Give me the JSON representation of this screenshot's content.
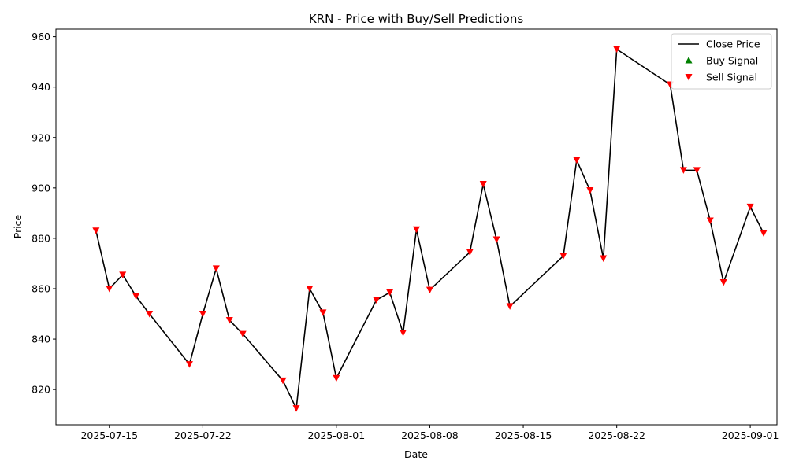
{
  "chart_data": {
    "type": "line",
    "title": "KRN - Price with Buy/Sell Predictions",
    "xlabel": "Date",
    "ylabel": "Price",
    "ylim": [
      806,
      963
    ],
    "xlim": [
      "2025-07-11",
      "2025-09-03"
    ],
    "grid": false,
    "legend_position": "top-right",
    "x_ticks": [
      "2025-07-15",
      "2025-07-22",
      "2025-08-01",
      "2025-08-08",
      "2025-08-15",
      "2025-08-22",
      "2025-09-01"
    ],
    "y_ticks": [
      820,
      840,
      860,
      880,
      900,
      920,
      940,
      960
    ],
    "series": [
      {
        "name": "Close Price",
        "kind": "line",
        "color": "#000000",
        "x": [
          "2025-07-14",
          "2025-07-15",
          "2025-07-16",
          "2025-07-17",
          "2025-07-18",
          "2025-07-21",
          "2025-07-22",
          "2025-07-23",
          "2025-07-24",
          "2025-07-25",
          "2025-07-28",
          "2025-07-29",
          "2025-07-30",
          "2025-07-31",
          "2025-08-01",
          "2025-08-04",
          "2025-08-05",
          "2025-08-06",
          "2025-08-07",
          "2025-08-08",
          "2025-08-11",
          "2025-08-12",
          "2025-08-13",
          "2025-08-14",
          "2025-08-18",
          "2025-08-19",
          "2025-08-20",
          "2025-08-21",
          "2025-08-22",
          "2025-08-26",
          "2025-08-27",
          "2025-08-28",
          "2025-08-29",
          "2025-08-30",
          "2025-09-01",
          "2025-09-02"
        ],
        "y": [
          883,
          860,
          865.5,
          857,
          850,
          830,
          850,
          868,
          847.5,
          842,
          823.5,
          812.5,
          860,
          850.5,
          824.5,
          855.5,
          858.5,
          842.5,
          883.5,
          859.5,
          874.5,
          901.5,
          879.5,
          853,
          873,
          911,
          899,
          872,
          955,
          941,
          907,
          907,
          887,
          862.5,
          892.5,
          882
        ]
      },
      {
        "name": "Buy Signal",
        "kind": "scatter",
        "marker": "triangle-up",
        "color": "#008000",
        "x": [],
        "y": []
      },
      {
        "name": "Sell Signal",
        "kind": "scatter",
        "marker": "triangle-down",
        "color": "#ff0000",
        "x": [
          "2025-07-14",
          "2025-07-15",
          "2025-07-16",
          "2025-07-17",
          "2025-07-18",
          "2025-07-21",
          "2025-07-22",
          "2025-07-23",
          "2025-07-24",
          "2025-07-25",
          "2025-07-28",
          "2025-07-29",
          "2025-07-30",
          "2025-07-31",
          "2025-08-01",
          "2025-08-04",
          "2025-08-05",
          "2025-08-06",
          "2025-08-07",
          "2025-08-08",
          "2025-08-11",
          "2025-08-12",
          "2025-08-13",
          "2025-08-14",
          "2025-08-18",
          "2025-08-19",
          "2025-08-20",
          "2025-08-21",
          "2025-08-22",
          "2025-08-26",
          "2025-08-27",
          "2025-08-28",
          "2025-08-29",
          "2025-08-30",
          "2025-09-01",
          "2025-09-02"
        ],
        "y": [
          883,
          860,
          865.5,
          857,
          850,
          830,
          850,
          868,
          847.5,
          842,
          823.5,
          812.5,
          860,
          850.5,
          824.5,
          855.5,
          858.5,
          842.5,
          883.5,
          859.5,
          874.5,
          901.5,
          879.5,
          853,
          873,
          911,
          899,
          872,
          955,
          941,
          907,
          907,
          887,
          862.5,
          892.5,
          882
        ]
      }
    ]
  }
}
